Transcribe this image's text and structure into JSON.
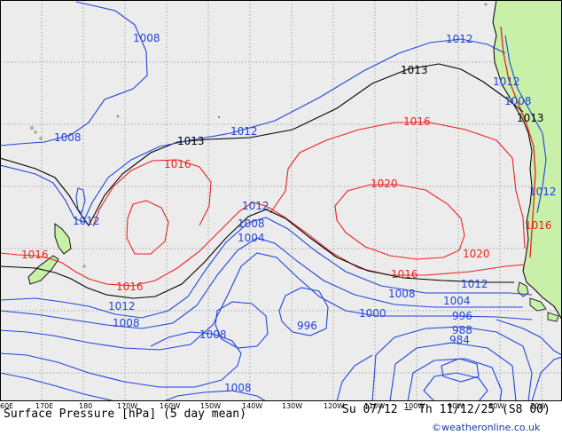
{
  "map": {
    "colors": {
      "ocean": "#ececec",
      "land": "#c8f0a8",
      "coast": "#000000",
      "grid": "#b4b4b4",
      "isobar_low": "#2244dd",
      "isobar_mid": "#000000",
      "isobar_high": "#ee2222",
      "andes_red": "#ee2222"
    },
    "contour_labels": [
      {
        "id": "l1008a",
        "text": "1008",
        "cls": "low"
      },
      {
        "id": "l1012a",
        "text": "1012",
        "cls": "low"
      },
      {
        "id": "l1013a",
        "text": "1013",
        "cls": "mid"
      },
      {
        "id": "l1012b",
        "text": "1012",
        "cls": "low"
      },
      {
        "id": "l1008b",
        "text": "1008",
        "cls": "low"
      },
      {
        "id": "l1013b",
        "text": "1013",
        "cls": "mid"
      },
      {
        "id": "l1016a",
        "text": "1016",
        "cls": "high"
      },
      {
        "id": "l1016b",
        "text": "1016",
        "cls": "high"
      },
      {
        "id": "l1020a",
        "text": "1020",
        "cls": "high"
      },
      {
        "id": "l1012c",
        "text": "1012",
        "cls": "low"
      },
      {
        "id": "l1012d",
        "text": "1012",
        "cls": "low"
      },
      {
        "id": "l1008c",
        "text": "1008",
        "cls": "low"
      },
      {
        "id": "l1004a",
        "text": "1004",
        "cls": "low"
      },
      {
        "id": "l1016c",
        "text": "1016",
        "cls": "high"
      },
      {
        "id": "l1016d",
        "text": "1016",
        "cls": "high"
      },
      {
        "id": "l1012e",
        "text": "1012",
        "cls": "low"
      },
      {
        "id": "l1008d",
        "text": "1008",
        "cls": "low"
      },
      {
        "id": "l996a",
        "text": "996",
        "cls": "low"
      },
      {
        "id": "l1016e",
        "text": "1016",
        "cls": "high"
      },
      {
        "id": "l1020b",
        "text": "1020",
        "cls": "high"
      },
      {
        "id": "l1012f",
        "text": "1012",
        "cls": "low"
      },
      {
        "id": "l1008e",
        "text": "1008",
        "cls": "low"
      },
      {
        "id": "l1004b",
        "text": "1004",
        "cls": "low"
      },
      {
        "id": "l1000a",
        "text": "1000",
        "cls": "low"
      },
      {
        "id": "l996b",
        "text": "996",
        "cls": "low"
      },
      {
        "id": "l988a",
        "text": "988",
        "cls": "low"
      },
      {
        "id": "l984a",
        "text": "984",
        "cls": "low"
      },
      {
        "id": "l1008f",
        "text": "1008",
        "cls": "low"
      },
      {
        "id": "l1008g",
        "text": "1008",
        "cls": "low"
      },
      {
        "id": "l1012g",
        "text": "1012",
        "cls": "low"
      },
      {
        "id": "l1013c",
        "text": "1013",
        "cls": "mid"
      },
      {
        "id": "l1012h",
        "text": "1012",
        "cls": "low"
      },
      {
        "id": "l1016f",
        "text": "1016",
        "cls": "high"
      },
      {
        "id": "l1008h",
        "text": "1008",
        "cls": "low"
      }
    ],
    "lon_ticks": [
      "60E",
      "170E",
      "180",
      "170W",
      "160W",
      "150W",
      "140W",
      "130W",
      "120W",
      "110W",
      "100W",
      "90W",
      "80W",
      "70W"
    ]
  },
  "footer": {
    "title": "Surface Pressure [hPa] (5 day mean)",
    "date_range": "Su 07/12 – Th 11/12/25 (S8 00)",
    "credit": "©weatheronline.co.uk"
  }
}
